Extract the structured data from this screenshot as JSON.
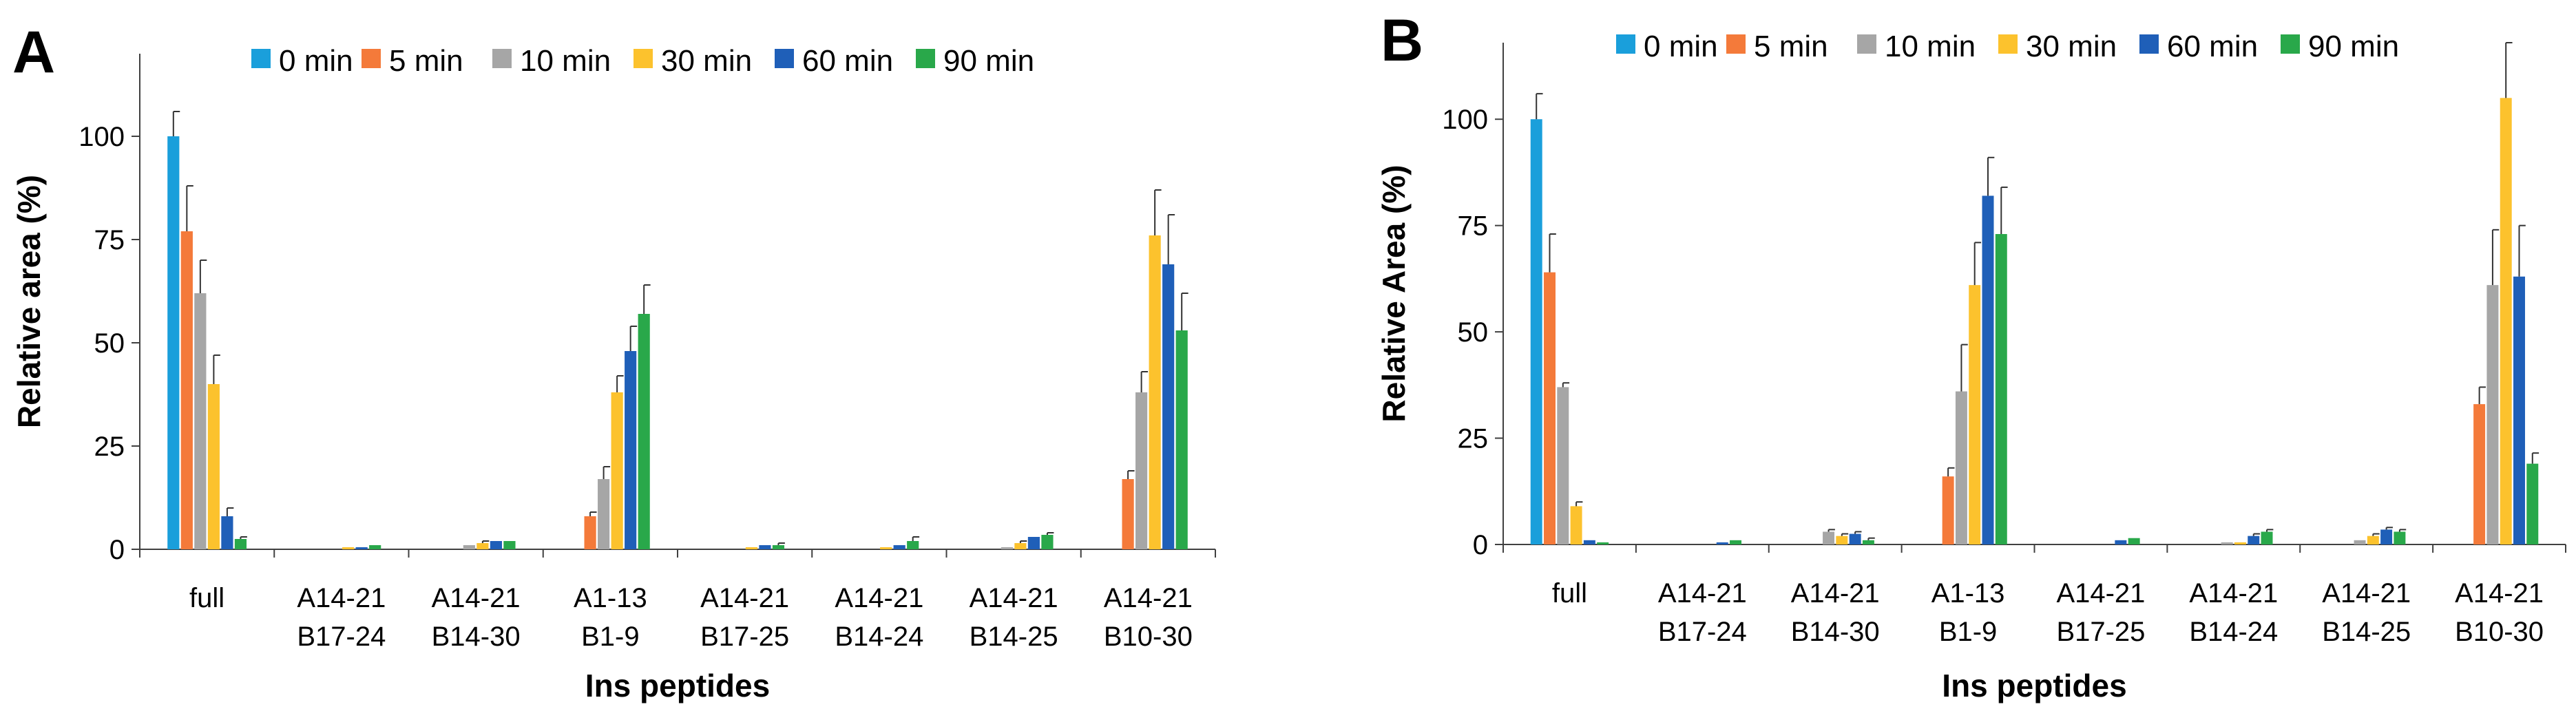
{
  "figure": {
    "panels": [
      "A",
      "B"
    ]
  },
  "chart_data": [
    {
      "type": "bar",
      "panel_label": "A",
      "title": "",
      "xlabel": "Ins peptides",
      "ylabel": "Relative area (%)",
      "ylim": [
        0,
        120
      ],
      "yticks": [
        0,
        25,
        50,
        75,
        100
      ],
      "grid": false,
      "legend_position": "top",
      "categories": [
        "full",
        "A14-21 B17-24",
        "A14-21 B14-30",
        "A1-13 B1-9",
        "A14-21 B17-25",
        "A14-21 B14-24",
        "A14-21 B14-25",
        "A14-21 B10-30"
      ],
      "category_lines": [
        [
          "full"
        ],
        [
          "A14-21",
          "B17-24"
        ],
        [
          "A14-21",
          "B14-30"
        ],
        [
          "A1-13",
          "B1-9"
        ],
        [
          "A14-21",
          "B17-25"
        ],
        [
          "A14-21",
          "B14-24"
        ],
        [
          "A14-21",
          "B14-25"
        ],
        [
          "A14-21",
          "B10-30"
        ]
      ],
      "series": [
        {
          "name": "0 min",
          "color": "#1a9fdb",
          "values": [
            100,
            0,
            0,
            0,
            0,
            0,
            0,
            0
          ],
          "errors": [
            6,
            0,
            0,
            0,
            0,
            0,
            0,
            0
          ]
        },
        {
          "name": "5 min",
          "color": "#f47a3a",
          "values": [
            77,
            0,
            0,
            8,
            0,
            0,
            0,
            17
          ],
          "errors": [
            11,
            0,
            0,
            1,
            0,
            0,
            0,
            2
          ]
        },
        {
          "name": "10 min",
          "color": "#a6a6a6",
          "values": [
            62,
            0,
            1,
            17,
            0,
            0,
            0.5,
            38
          ],
          "errors": [
            8,
            0,
            0,
            3,
            0,
            0,
            0,
            5
          ]
        },
        {
          "name": "30 min",
          "color": "#fcc22d",
          "values": [
            40,
            0.5,
            1.5,
            38,
            0.5,
            0.5,
            1.5,
            76
          ],
          "errors": [
            7,
            0,
            0.5,
            4,
            0,
            0,
            0.5,
            11
          ]
        },
        {
          "name": "60 min",
          "color": "#1f5fb8",
          "values": [
            8,
            0.5,
            2,
            48,
            1,
            1,
            3,
            69
          ],
          "errors": [
            2,
            0,
            0,
            6,
            0,
            0,
            0,
            12
          ]
        },
        {
          "name": "90 min",
          "color": "#29a84a",
          "values": [
            2.5,
            1,
            2,
            57,
            1,
            2,
            3.5,
            53
          ],
          "errors": [
            0.5,
            0,
            0,
            7,
            0.5,
            1,
            0.5,
            9
          ]
        }
      ]
    },
    {
      "type": "bar",
      "panel_label": "B",
      "title": "",
      "xlabel": "Ins peptides",
      "ylabel": "Relative Area (%)",
      "ylim": [
        0,
        118
      ],
      "yticks": [
        0,
        25,
        50,
        75,
        100
      ],
      "grid": false,
      "legend_position": "top",
      "categories": [
        "full",
        "A14-21 B17-24",
        "A14-21 B14-30",
        "A1-13 B1-9",
        "A14-21 B17-25",
        "A14-21 B14-24",
        "A14-21 B14-25",
        "A14-21 B10-30"
      ],
      "category_lines": [
        [
          "full"
        ],
        [
          "A14-21",
          "B17-24"
        ],
        [
          "A14-21",
          "B14-30"
        ],
        [
          "A1-13",
          "B1-9"
        ],
        [
          "A14-21",
          "B17-25"
        ],
        [
          "A14-21",
          "B14-24"
        ],
        [
          "A14-21",
          "B14-25"
        ],
        [
          "A14-21",
          "B10-30"
        ]
      ],
      "series": [
        {
          "name": "0 min",
          "color": "#1a9fdb",
          "values": [
            100,
            0,
            0,
            0,
            0,
            0,
            0,
            0
          ],
          "errors": [
            6,
            0,
            0,
            0,
            0,
            0,
            0,
            0
          ]
        },
        {
          "name": "5 min",
          "color": "#f47a3a",
          "values": [
            64,
            0,
            0,
            16,
            0,
            0,
            0,
            33
          ],
          "errors": [
            9,
            0,
            0,
            2,
            0,
            0,
            0,
            4
          ]
        },
        {
          "name": "10 min",
          "color": "#a6a6a6",
          "values": [
            37,
            0,
            3,
            36,
            0,
            0.5,
            1,
            61
          ],
          "errors": [
            1,
            0,
            0.5,
            11,
            0,
            0,
            0,
            13
          ]
        },
        {
          "name": "30 min",
          "color": "#fcc22d",
          "values": [
            9,
            0,
            2,
            61,
            0,
            0.5,
            2,
            105
          ],
          "errors": [
            1,
            0,
            0.5,
            10,
            0,
            0,
            0.5,
            13
          ]
        },
        {
          "name": "60 min",
          "color": "#1f5fb8",
          "values": [
            1,
            0.5,
            2.5,
            82,
            1,
            2,
            3.5,
            63
          ],
          "errors": [
            0,
            0,
            0.5,
            9,
            0,
            0.5,
            0.5,
            12
          ]
        },
        {
          "name": "90 min",
          "color": "#29a84a",
          "values": [
            0.5,
            1,
            1,
            73,
            1.5,
            3,
            3,
            19
          ],
          "errors": [
            0,
            0,
            0.5,
            11,
            0,
            0.5,
            0.5,
            2.5
          ]
        }
      ]
    }
  ]
}
